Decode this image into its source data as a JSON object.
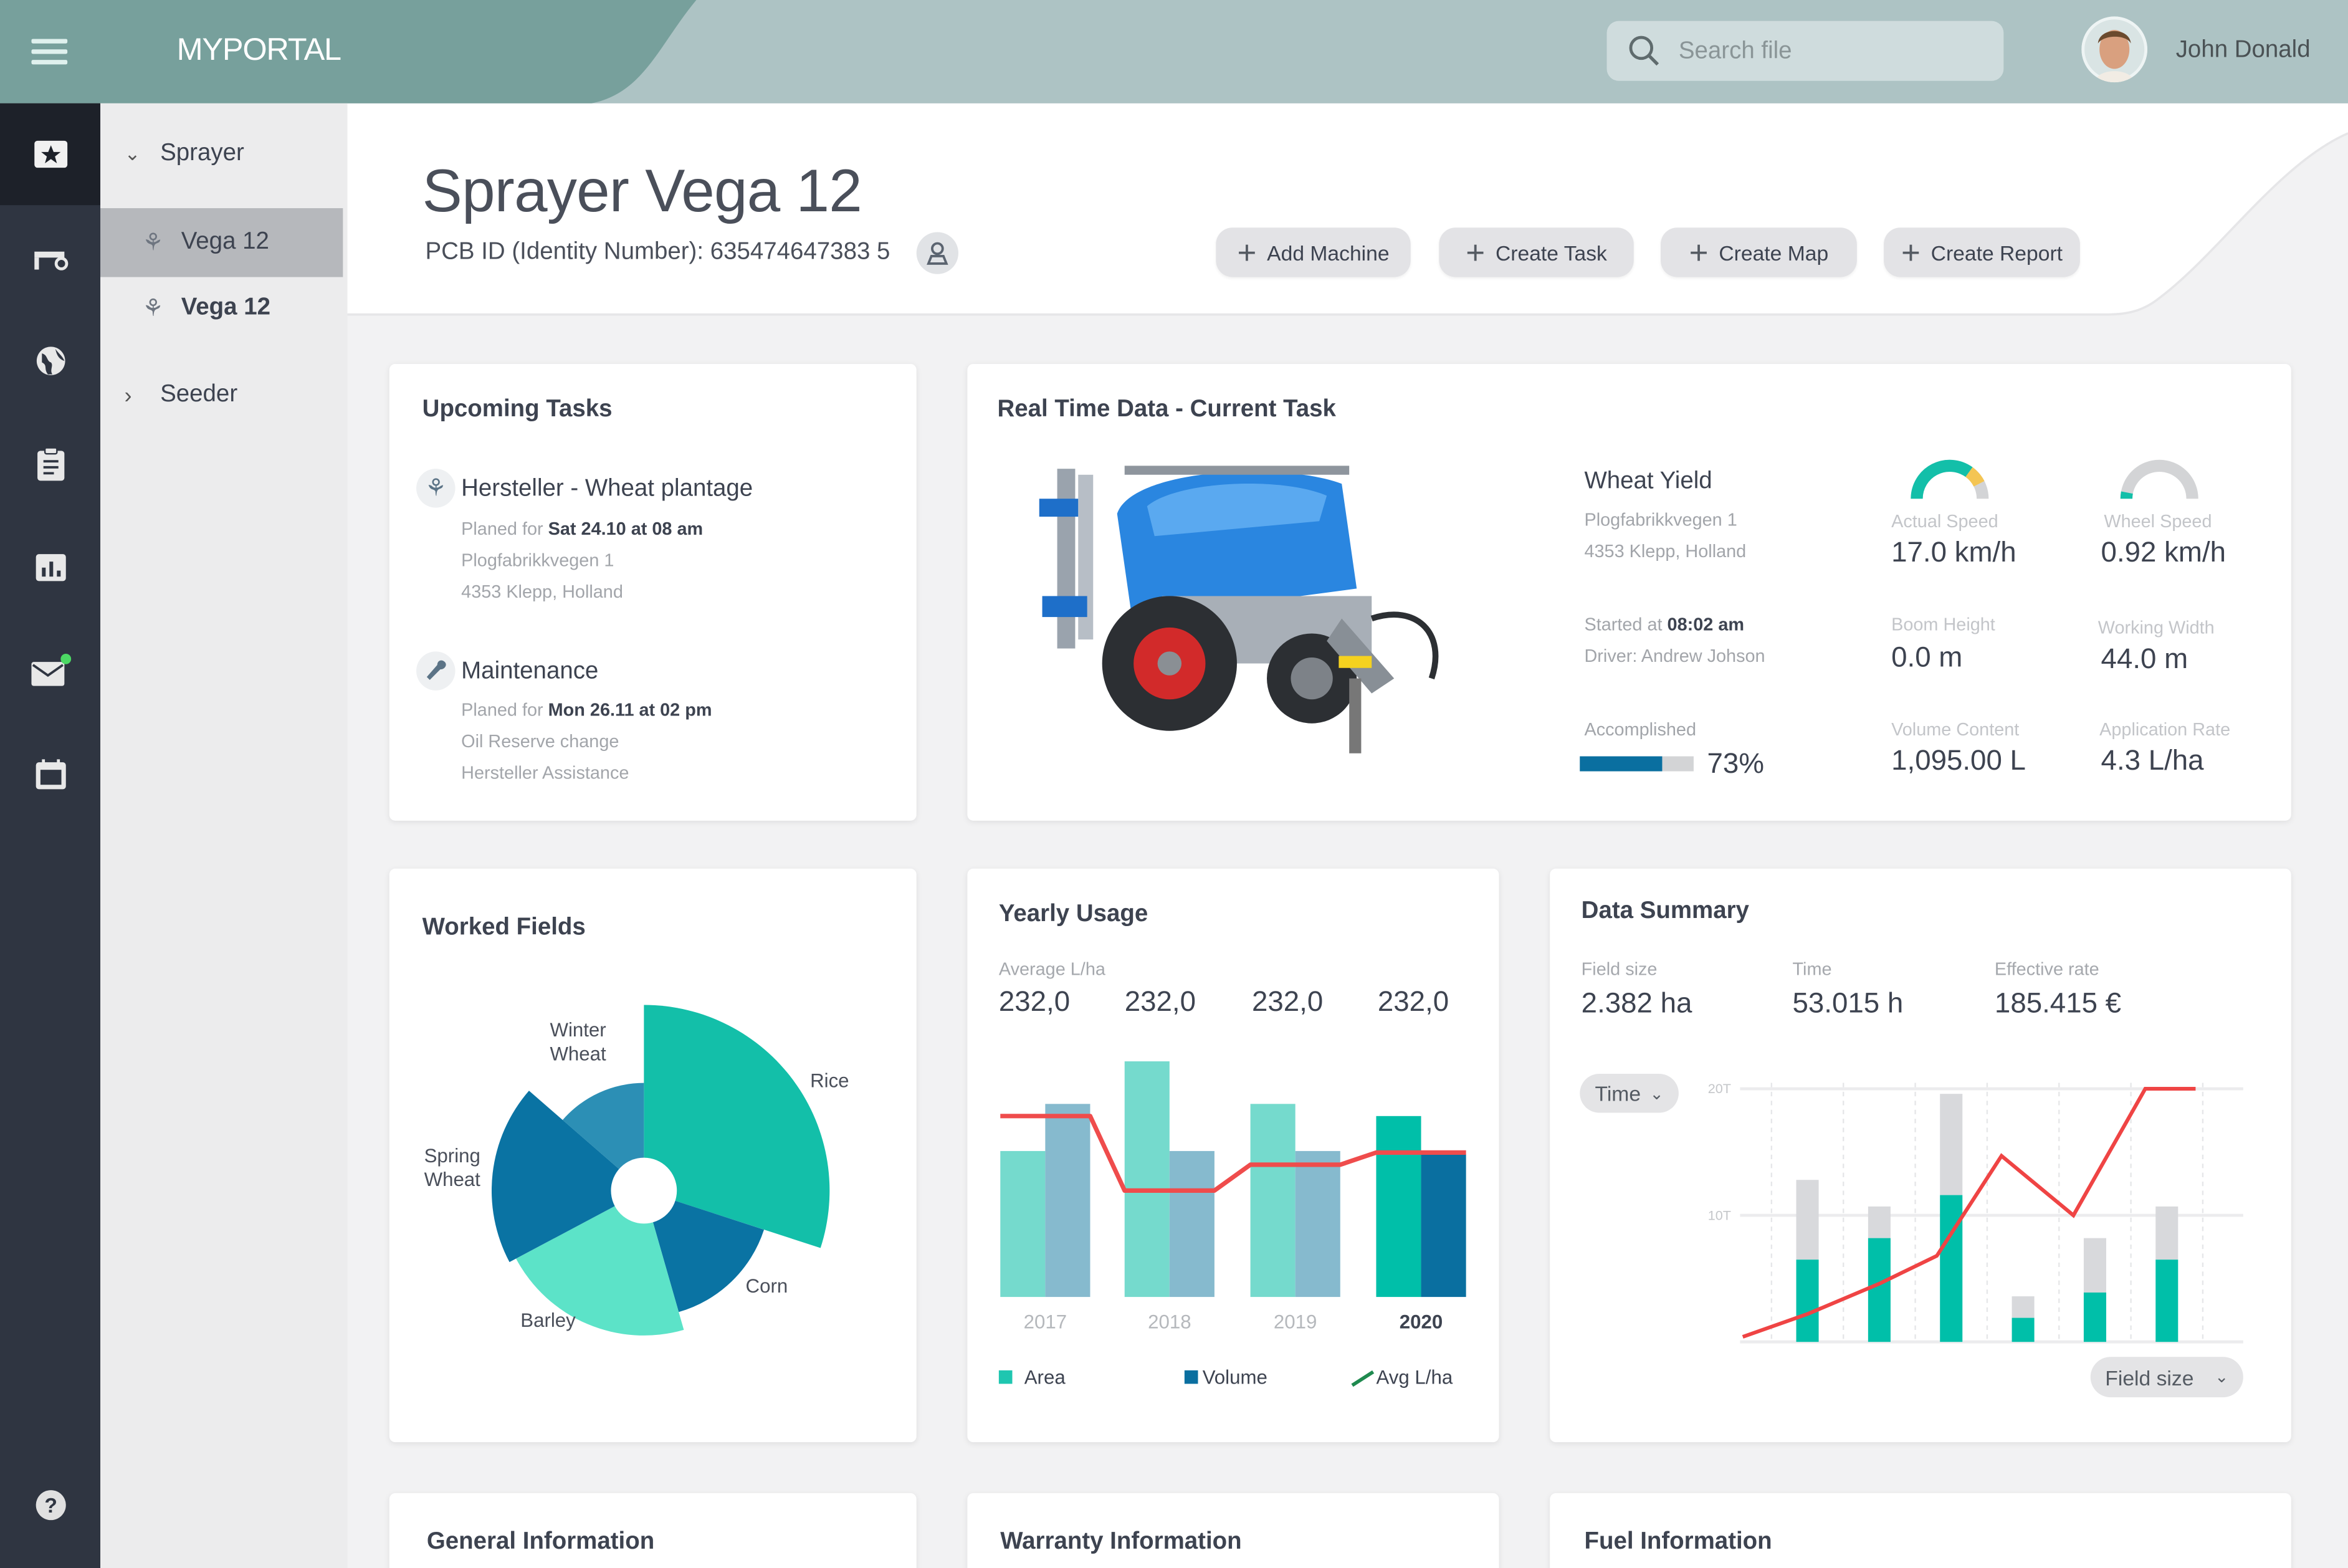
{
  "header": {
    "brand": "MYPORTAL",
    "search_placeholder": "Search file",
    "user_name": "John Donald"
  },
  "rail": {
    "items": [
      "dashboard-icon",
      "tractor-icon",
      "globe-icon",
      "clipboard-icon",
      "chart-icon",
      "mail-icon",
      "calendar-icon"
    ],
    "help": "help-icon",
    "notification_color": "#4cd964"
  },
  "tree": {
    "sprayer": "Sprayer",
    "items": [
      "Vega 12",
      "Vega 12"
    ],
    "seeder": "Seeder"
  },
  "page": {
    "title": "Sprayer Vega 12",
    "pcb_id": "PCB ID (Identity Number): 635474647383 5",
    "actions": [
      "Add Machine",
      "Create Task",
      "Create Map",
      "Create Report"
    ]
  },
  "tasks": {
    "title": "Upcoming Tasks",
    "items": [
      {
        "title": "Hersteller - Wheat plantage",
        "planned_prefix": "Planed for ",
        "planned_when": "Sat 24.10 at 08 am",
        "line1": "Plogfabrikkvegen 1",
        "line2": "4353 Klepp, Holland"
      },
      {
        "title": "Maintenance",
        "planned_prefix": "Planed for ",
        "planned_when": "Mon 26.11 at 02 pm",
        "line1": "Oil Reserve change",
        "line2": "Hersteller Assistance"
      }
    ]
  },
  "realtime": {
    "title": "Real Time Data - Current Task",
    "yield_title": "Wheat Yield",
    "address1": "Plogfabrikkvegen 1",
    "address2": "4353 Klepp, Holland",
    "started_prefix": "Started at ",
    "started_time": "08:02 am",
    "driver": "Driver: Andrew Johson",
    "accomplished_label": "Accomplished",
    "accomplished_text": "73%",
    "accomplished_fraction": 0.73,
    "metrics": [
      {
        "label": "Actual Speed",
        "value": "17.0 km/h"
      },
      {
        "label": "Wheel Speed",
        "value": "0.92 km/h"
      },
      {
        "label": "Boom Height",
        "value": "0.0 m"
      },
      {
        "label": "Working Width",
        "value": "44.0 m"
      },
      {
        "label": "Volume Content",
        "value": "1,095.00 L"
      },
      {
        "label": "Application Rate",
        "value": "4.3 L/ha"
      }
    ],
    "gauges": {
      "actual_speed": {
        "fill": 0.7,
        "warn": 0.15
      },
      "wheel_speed": {
        "fill": 0.06
      }
    },
    "colors": {
      "teal": "#13bfa9",
      "warn": "#f4c553",
      "track": "#d3d4d6",
      "progress": "#0a6fa0"
    }
  },
  "worked_fields": {
    "title": "Worked Fields"
  },
  "yearly": {
    "title": "Yearly Usage",
    "avg_label": "Average L/ha",
    "averages": [
      "232,0",
      "232,0",
      "232,0",
      "232,0"
    ]
  },
  "data_summary": {
    "title": "Data Summary",
    "stats": [
      {
        "label": "Field size",
        "value": "2.382 ha"
      },
      {
        "label": "Time",
        "value": "53.015 h"
      },
      {
        "label": "Effective rate",
        "value": "185.415 €"
      }
    ],
    "time_dropdown": "Time",
    "field_dropdown": "Field size"
  },
  "bottom": {
    "general": "General Information",
    "warranty": "Warranty Information",
    "fuel": "Fuel Information"
  },
  "chart_data": [
    {
      "type": "pie",
      "variant": "polar-area",
      "labels": [
        "Rice",
        "Corn",
        "Barley",
        "Spring Wheat",
        "Winter Wheat"
      ],
      "label_lines": [
        [
          "Rice"
        ],
        [
          "Corn"
        ],
        [
          "Barley"
        ],
        [
          "Spring",
          "Wheat"
        ],
        [
          "Winter",
          "Wheat"
        ]
      ],
      "angles_deg": [
        108,
        56,
        78,
        69,
        49
      ],
      "values": [
        100,
        68,
        78,
        82,
        58
      ],
      "colors": [
        "#13bfa9",
        "#0a73a3",
        "#5ce3c8",
        "#0a73a3",
        "#2c8fb5"
      ]
    },
    {
      "type": "bar",
      "categories": [
        "2017",
        "2018",
        "2019",
        "2020"
      ],
      "highlight_category": "2020",
      "series": [
        {
          "name": "Area",
          "values": [
            48,
            77.5,
            63.5,
            59.5
          ],
          "color": "#75dacd",
          "color_highlight": "#00bfa9"
        },
        {
          "name": "Volume",
          "values": [
            63.5,
            48,
            48,
            47
          ],
          "color": "#86bace",
          "color_highlight": "#0a6fa0"
        },
        {
          "name": "Avg L/ha",
          "type": "line",
          "values": [
            59.5,
            35,
            43.5,
            47.5
          ],
          "color": "#ef4c4c",
          "legend_color": "#1f8a4f"
        }
      ],
      "ylim": [
        0,
        85
      ]
    },
    {
      "type": "bar",
      "stacked": true,
      "ylim": [
        0,
        20
      ],
      "yticks": [
        "10T",
        "20T"
      ],
      "yticks_values": [
        10,
        20
      ],
      "grid": true,
      "series": [
        {
          "values": [
            6.5,
            8.2,
            11.6,
            1.9,
            3.9,
            6.5
          ],
          "color": "#00bfa9"
        },
        {
          "values": [
            6.3,
            2.5,
            8.0,
            1.7,
            4.3,
            4.2
          ],
          "color": "#d8d9dc"
        },
        {
          "type": "line",
          "x": [
            0.1,
            1,
            2,
            2.8,
            3.7,
            4.7,
            5.7,
            6.4
          ],
          "values": [
            0.4,
            2.2,
            4.6,
            6.8,
            14.7,
            10,
            20,
            20
          ],
          "color": "#ef4444"
        }
      ]
    }
  ]
}
